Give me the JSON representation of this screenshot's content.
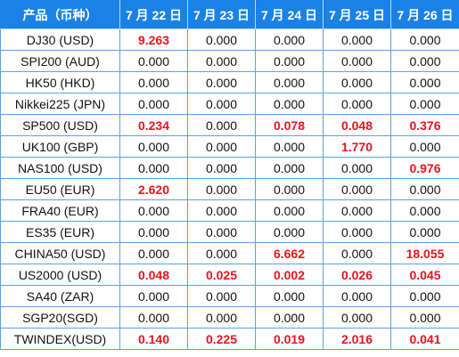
{
  "headers": [
    "产品（币种）",
    "7 月 22 日",
    "7 月 23 日",
    "7 月 24 日",
    "7 月 25 日",
    "7 月 26 日"
  ],
  "rows": [
    {
      "product": "DJ30 (USD)",
      "values": [
        "9.263",
        "0.000",
        "0.000",
        "0.000",
        "0.000"
      ],
      "highlight": [
        true,
        false,
        false,
        false,
        false
      ]
    },
    {
      "product": "SPI200 (AUD)",
      "values": [
        "0.000",
        "0.000",
        "0.000",
        "0.000",
        "0.000"
      ],
      "highlight": [
        false,
        false,
        false,
        false,
        false
      ]
    },
    {
      "product": "HK50 (HKD)",
      "values": [
        "0.000",
        "0.000",
        "0.000",
        "0.000",
        "0.000"
      ],
      "highlight": [
        false,
        false,
        false,
        false,
        false
      ]
    },
    {
      "product": "Nikkei225 (JPN)",
      "values": [
        "0.000",
        "0.000",
        "0.000",
        "0.000",
        "0.000"
      ],
      "highlight": [
        false,
        false,
        false,
        false,
        false
      ]
    },
    {
      "product": "SP500 (USD)",
      "values": [
        "0.234",
        "0.000",
        "0.078",
        "0.048",
        "0.376"
      ],
      "highlight": [
        true,
        false,
        true,
        true,
        true
      ]
    },
    {
      "product": "UK100 (GBP)",
      "values": [
        "0.000",
        "0.000",
        "0.000",
        "1.770",
        "0.000"
      ],
      "highlight": [
        false,
        false,
        false,
        true,
        false
      ]
    },
    {
      "product": "NAS100 (USD)",
      "values": [
        "0.000",
        "0.000",
        "0.000",
        "0.000",
        "0.976"
      ],
      "highlight": [
        false,
        false,
        false,
        false,
        true
      ]
    },
    {
      "product": "EU50 (EUR)",
      "values": [
        "2.620",
        "0.000",
        "0.000",
        "0.000",
        "0.000"
      ],
      "highlight": [
        true,
        false,
        false,
        false,
        false
      ]
    },
    {
      "product": "FRA40 (EUR)",
      "values": [
        "0.000",
        "0.000",
        "0.000",
        "0.000",
        "0.000"
      ],
      "highlight": [
        false,
        false,
        false,
        false,
        false
      ]
    },
    {
      "product": "ES35 (EUR)",
      "values": [
        "0.000",
        "0.000",
        "0.000",
        "0.000",
        "0.000"
      ],
      "highlight": [
        false,
        false,
        false,
        false,
        false
      ]
    },
    {
      "product": "CHINA50 (USD)",
      "values": [
        "0.000",
        "0.000",
        "6.662",
        "0.000",
        "18.055"
      ],
      "highlight": [
        false,
        false,
        true,
        false,
        true
      ]
    },
    {
      "product": "US2000 (USD)",
      "values": [
        "0.048",
        "0.025",
        "0.002",
        "0.026",
        "0.045"
      ],
      "highlight": [
        true,
        true,
        true,
        true,
        true
      ]
    },
    {
      "product": "SA40 (ZAR)",
      "values": [
        "0.000",
        "0.000",
        "0.000",
        "0.000",
        "0.000"
      ],
      "highlight": [
        false,
        false,
        false,
        false,
        false
      ]
    },
    {
      "product": "SGP20(SGD)",
      "values": [
        "0.000",
        "0.000",
        "0.000",
        "0.000",
        "0.000"
      ],
      "highlight": [
        false,
        false,
        false,
        false,
        false
      ]
    },
    {
      "product": "TWINDEX(USD)",
      "values": [
        "0.140",
        "0.225",
        "0.019",
        "2.016",
        "0.041"
      ],
      "highlight": [
        true,
        true,
        true,
        true,
        true
      ]
    }
  ],
  "colors": {
    "header_bg": "#1a82e6",
    "header_text": "#ffffff",
    "border": "#5aa2e8",
    "highlight_text": "#e8141e",
    "normal_text": "#111111"
  }
}
